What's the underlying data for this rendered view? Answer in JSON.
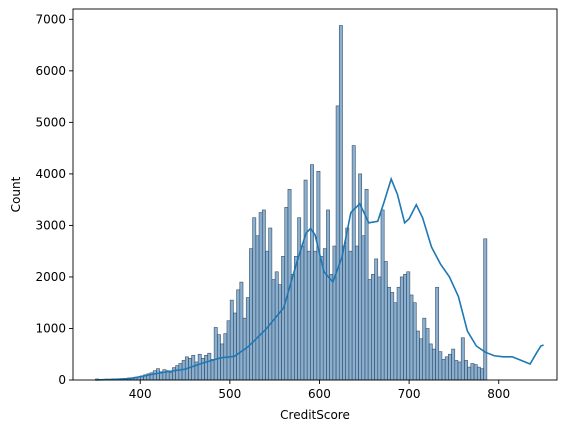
{
  "chart_data": {
    "type": "bar",
    "title": "",
    "xlabel": "CreditScore",
    "ylabel": "Count",
    "xlim": [
      325,
      865
    ],
    "ylim": [
      0,
      7200
    ],
    "xticks": [
      400,
      500,
      600,
      700,
      800
    ],
    "yticks": [
      0,
      1000,
      2000,
      3000,
      4000,
      5000,
      6000,
      7000
    ],
    "grid": false,
    "bin_start": 350,
    "bin_width": 3.58,
    "values": [
      20,
      12,
      15,
      18,
      15,
      22,
      20,
      18,
      25,
      30,
      40,
      45,
      55,
      60,
      80,
      100,
      120,
      140,
      180,
      220,
      160,
      200,
      180,
      150,
      240,
      280,
      320,
      380,
      450,
      420,
      480,
      350,
      500,
      420,
      480,
      520,
      400,
      1020,
      880,
      700,
      900,
      1150,
      1550,
      1300,
      1750,
      1900,
      1200,
      1600,
      2550,
      3150,
      2800,
      3250,
      3300,
      2500,
      2950,
      1950,
      2100,
      1850,
      2400,
      3350,
      3700,
      2050,
      2400,
      3150,
      2600,
      3880,
      2500,
      4180,
      2500,
      4050,
      2400,
      2550,
      3300,
      2050,
      2600,
      5320,
      6880,
      2600,
      2950,
      2500,
      4550,
      2600,
      4000,
      2800,
      3700,
      1950,
      2050,
      2350,
      2000,
      3300,
      2300,
      1800,
      1700,
      1500,
      1800,
      2000,
      2050,
      2100,
      1650,
      1500,
      950,
      800,
      1200,
      1000,
      700,
      600,
      1800,
      550,
      400,
      450,
      500,
      600,
      380,
      350,
      820,
      380,
      250,
      320,
      300,
      250,
      220,
      2740
    ],
    "kde": {
      "x": [
        350,
        370,
        390,
        410,
        430,
        450,
        470,
        490,
        505,
        520,
        540,
        560,
        575,
        585,
        590,
        595,
        605,
        615,
        625,
        635,
        645,
        655,
        665,
        672,
        680,
        687,
        695,
        700,
        708,
        715,
        725,
        735,
        745,
        755,
        765,
        775,
        785,
        795,
        805,
        815,
        825,
        835,
        842,
        847,
        850
      ],
      "y": [
        0,
        10,
        30,
        100,
        160,
        210,
        330,
        430,
        460,
        640,
        980,
        1400,
        2300,
        2850,
        2940,
        2820,
        2100,
        1900,
        2380,
        3250,
        3420,
        3050,
        3080,
        3450,
        3900,
        3600,
        3050,
        3130,
        3400,
        3150,
        2580,
        2250,
        2000,
        1620,
        950,
        660,
        540,
        470,
        450,
        450,
        380,
        310,
        520,
        660,
        680
      ]
    }
  }
}
